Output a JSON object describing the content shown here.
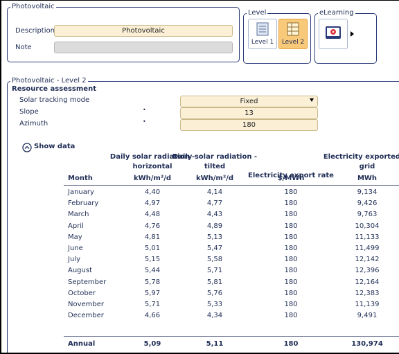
{
  "general": {
    "title": "Photovoltaic",
    "description_label": "Description",
    "description_value": "Photovoltaic",
    "note_label": "Note"
  },
  "level": {
    "title": "Level",
    "buttons": [
      "Level 1",
      "Level 2"
    ]
  },
  "elearning": {
    "title": "eLearning"
  },
  "section": {
    "title": "Photovoltaic - Level 2",
    "subtitle": "Resource assessment",
    "fields": [
      {
        "label": "Solar tracking mode",
        "value": "Fixed"
      },
      {
        "label": "Slope",
        "marker": "•",
        "value": "13"
      },
      {
        "label": "Azimuth",
        "marker": "•",
        "value": "180"
      }
    ],
    "toggle": "Show data"
  },
  "table": {
    "month_header": "Month",
    "columns": [
      {
        "title": [
          "Daily solar radiation -",
          "horizontal"
        ],
        "unit": "kWh/m²/d"
      },
      {
        "title": [
          "Daily solar radiation -",
          "tilted"
        ],
        "unit": "kWh/m²/d"
      },
      {
        "title": [
          "Electricity export rate"
        ],
        "unit": "$/MWh"
      },
      {
        "title": [
          "Electricity exported to",
          "grid"
        ],
        "unit": "MWh"
      }
    ],
    "rows": [
      {
        "month": "January",
        "values": [
          "4,40",
          "4,14",
          "180",
          "9,134"
        ]
      },
      {
        "month": "February",
        "values": [
          "4,97",
          "4,77",
          "180",
          "9,426"
        ]
      },
      {
        "month": "March",
        "values": [
          "4,48",
          "4,43",
          "180",
          "9,763"
        ]
      },
      {
        "month": "April",
        "values": [
          "4,76",
          "4,89",
          "180",
          "10,304"
        ]
      },
      {
        "month": "May",
        "values": [
          "4,81",
          "5,13",
          "180",
          "11,133"
        ]
      },
      {
        "month": "June",
        "values": [
          "5,01",
          "5,47",
          "180",
          "11,499"
        ]
      },
      {
        "month": "July",
        "values": [
          "5,15",
          "5,58",
          "180",
          "12,142"
        ]
      },
      {
        "month": "August",
        "values": [
          "5,44",
          "5,71",
          "180",
          "12,396"
        ]
      },
      {
        "month": "September",
        "values": [
          "5,78",
          "5,81",
          "180",
          "12,164"
        ]
      },
      {
        "month": "October",
        "values": [
          "5,97",
          "5,76",
          "180",
          "12,383"
        ]
      },
      {
        "month": "November",
        "values": [
          "5,71",
          "5,33",
          "180",
          "11,139"
        ]
      },
      {
        "month": "December",
        "values": [
          "4,66",
          "4,34",
          "180",
          "9,491"
        ]
      }
    ],
    "total": {
      "label": "Annual",
      "values": [
        "5,09",
        "5,11",
        "180",
        "130,974"
      ]
    }
  }
}
